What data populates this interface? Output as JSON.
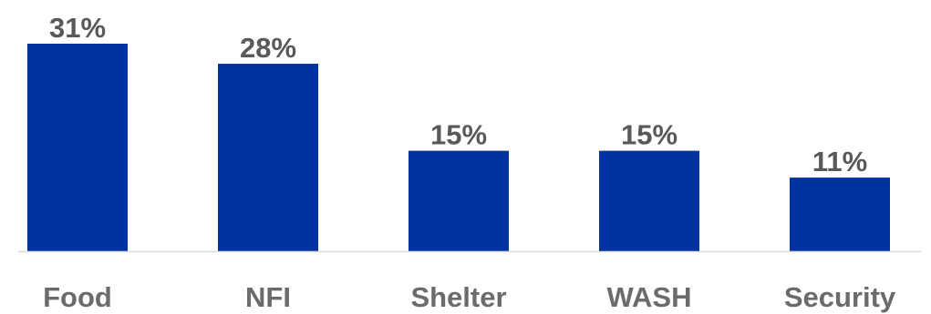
{
  "chart_data": {
    "type": "bar",
    "categories": [
      "Food",
      "NFI",
      "Shelter",
      "WASH",
      "Security"
    ],
    "values": [
      31,
      28,
      15,
      15,
      11
    ],
    "value_labels": [
      "31%",
      "28%",
      "15%",
      "15%",
      "11%"
    ],
    "unit": "%",
    "title": "",
    "xlabel": "",
    "ylabel": "",
    "ylim": [
      0,
      31
    ],
    "grid": false,
    "legend": "none",
    "colors": {
      "bar": "#0033a0",
      "label": "#595959",
      "axis": "#d9d9d9"
    }
  }
}
